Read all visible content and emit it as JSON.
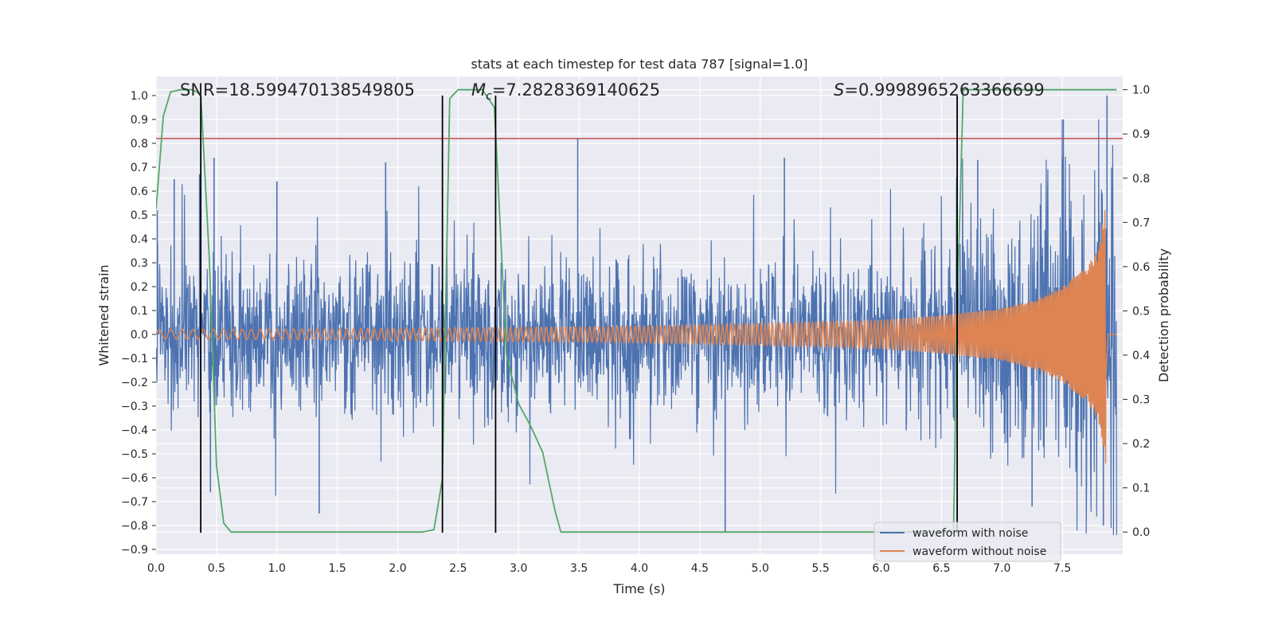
{
  "chart_data": {
    "type": "line",
    "title": "stats at each timestep for test data 787 [signal=1.0]",
    "xlabel": "Time (s)",
    "ylabel": "Whitened strain",
    "y2label": "Detection probability",
    "xlim": [
      0.0,
      8.0
    ],
    "ylim": [
      -0.92,
      1.08
    ],
    "y2lim": [
      -0.05,
      1.03
    ],
    "xticks": [
      "0.0",
      "0.5",
      "1.0",
      "1.5",
      "2.0",
      "2.5",
      "3.0",
      "3.5",
      "4.0",
      "4.5",
      "5.0",
      "5.5",
      "6.0",
      "6.5",
      "7.0",
      "7.5"
    ],
    "yticks": [
      "1.0",
      "0.9",
      "0.8",
      "0.7",
      "0.6",
      "0.5",
      "0.4",
      "0.3",
      "0.2",
      "0.1",
      "0.0",
      "−0.1",
      "−0.2",
      "−0.3",
      "−0.4",
      "−0.5",
      "−0.6",
      "−0.7",
      "−0.8",
      "−0.9"
    ],
    "y2ticks": [
      "1.0",
      "0.9",
      "0.8",
      "0.7",
      "0.6",
      "0.5",
      "0.4",
      "0.3",
      "0.2",
      "0.1",
      "0.0"
    ],
    "grid": true,
    "legend_position": "lower-right",
    "annotations": {
      "snr": "SNR=18.599470138549805",
      "mc_symbol": "M",
      "mc_sub": "c",
      "mc_value": "=7.2828369140625",
      "s_symbol": "S",
      "s_value": "=0.9998965263366699"
    },
    "threshold_y": 0.82,
    "threshold_color": "#c44e52",
    "vertical_lines_x": [
      0.37,
      2.37,
      2.81,
      6.63
    ],
    "series": [
      {
        "name": "waveform with noise",
        "color": "#4c72b0",
        "description_envelope": {
          "base_x": [
            0.0,
            1.0,
            2.0,
            3.0,
            4.0,
            5.0,
            6.0,
            6.5,
            7.0,
            7.5,
            7.9
          ],
          "base_y": [
            0.3,
            0.3,
            0.3,
            0.3,
            0.3,
            0.3,
            0.32,
            0.36,
            0.45,
            0.58,
            0.72
          ],
          "spike_peaks": [
            {
              "x": 0.01,
              "y": 0.52
            },
            {
              "x": 0.15,
              "y": 0.65
            },
            {
              "x": 0.36,
              "y": 0.67
            },
            {
              "x": 0.48,
              "y": 0.74
            },
            {
              "x": 1.0,
              "y": 0.64
            },
            {
              "x": 1.9,
              "y": 0.72
            },
            {
              "x": 3.49,
              "y": 0.82
            },
            {
              "x": 5.2,
              "y": 0.74
            },
            {
              "x": 6.8,
              "y": 0.73
            },
            {
              "x": 7.5,
              "y": 0.74
            },
            {
              "x": 7.87,
              "y": 1.0
            },
            {
              "x": 0.45,
              "y": -0.66
            },
            {
              "x": 1.35,
              "y": -0.75
            },
            {
              "x": 4.71,
              "y": -0.83
            },
            {
              "x": 7.25,
              "y": -0.72
            },
            {
              "x": 7.84,
              "y": -0.8
            }
          ]
        }
      },
      {
        "name": "waveform without noise",
        "color": "#dd8452",
        "amplitude_x": [
          0.0,
          1.0,
          2.0,
          3.0,
          4.0,
          5.0,
          6.0,
          6.5,
          7.0,
          7.3,
          7.5,
          7.7,
          7.8,
          7.86,
          7.88
        ],
        "amplitude_y": [
          0.02,
          0.022,
          0.025,
          0.03,
          0.035,
          0.045,
          0.06,
          0.08,
          0.11,
          0.15,
          0.2,
          0.28,
          0.36,
          0.55,
          0.0
        ]
      },
      {
        "name": "detection probability",
        "color": "#55a868",
        "axis": "right",
        "x": [
          0.0,
          0.06,
          0.12,
          0.2,
          0.3,
          0.37,
          0.44,
          0.5,
          0.56,
          0.62,
          0.8,
          1.5,
          2.2,
          2.3,
          2.37,
          2.43,
          2.5,
          2.7,
          2.8,
          2.9,
          3.0,
          3.1,
          3.2,
          3.3,
          3.35,
          3.4,
          4.0,
          5.0,
          6.0,
          6.6,
          6.63,
          6.68,
          6.75,
          7.0,
          7.95
        ],
        "y": [
          0.73,
          0.94,
          0.995,
          1.0,
          1.0,
          0.99,
          0.62,
          0.15,
          0.02,
          0.0,
          0.0,
          0.0,
          0.0,
          0.005,
          0.12,
          0.98,
          1.0,
          1.0,
          0.96,
          0.4,
          0.29,
          0.24,
          0.18,
          0.05,
          0.0,
          0.0,
          0.0,
          0.0,
          0.0,
          0.0,
          0.5,
          1.0,
          1.0,
          1.0,
          1.0
        ]
      }
    ]
  }
}
